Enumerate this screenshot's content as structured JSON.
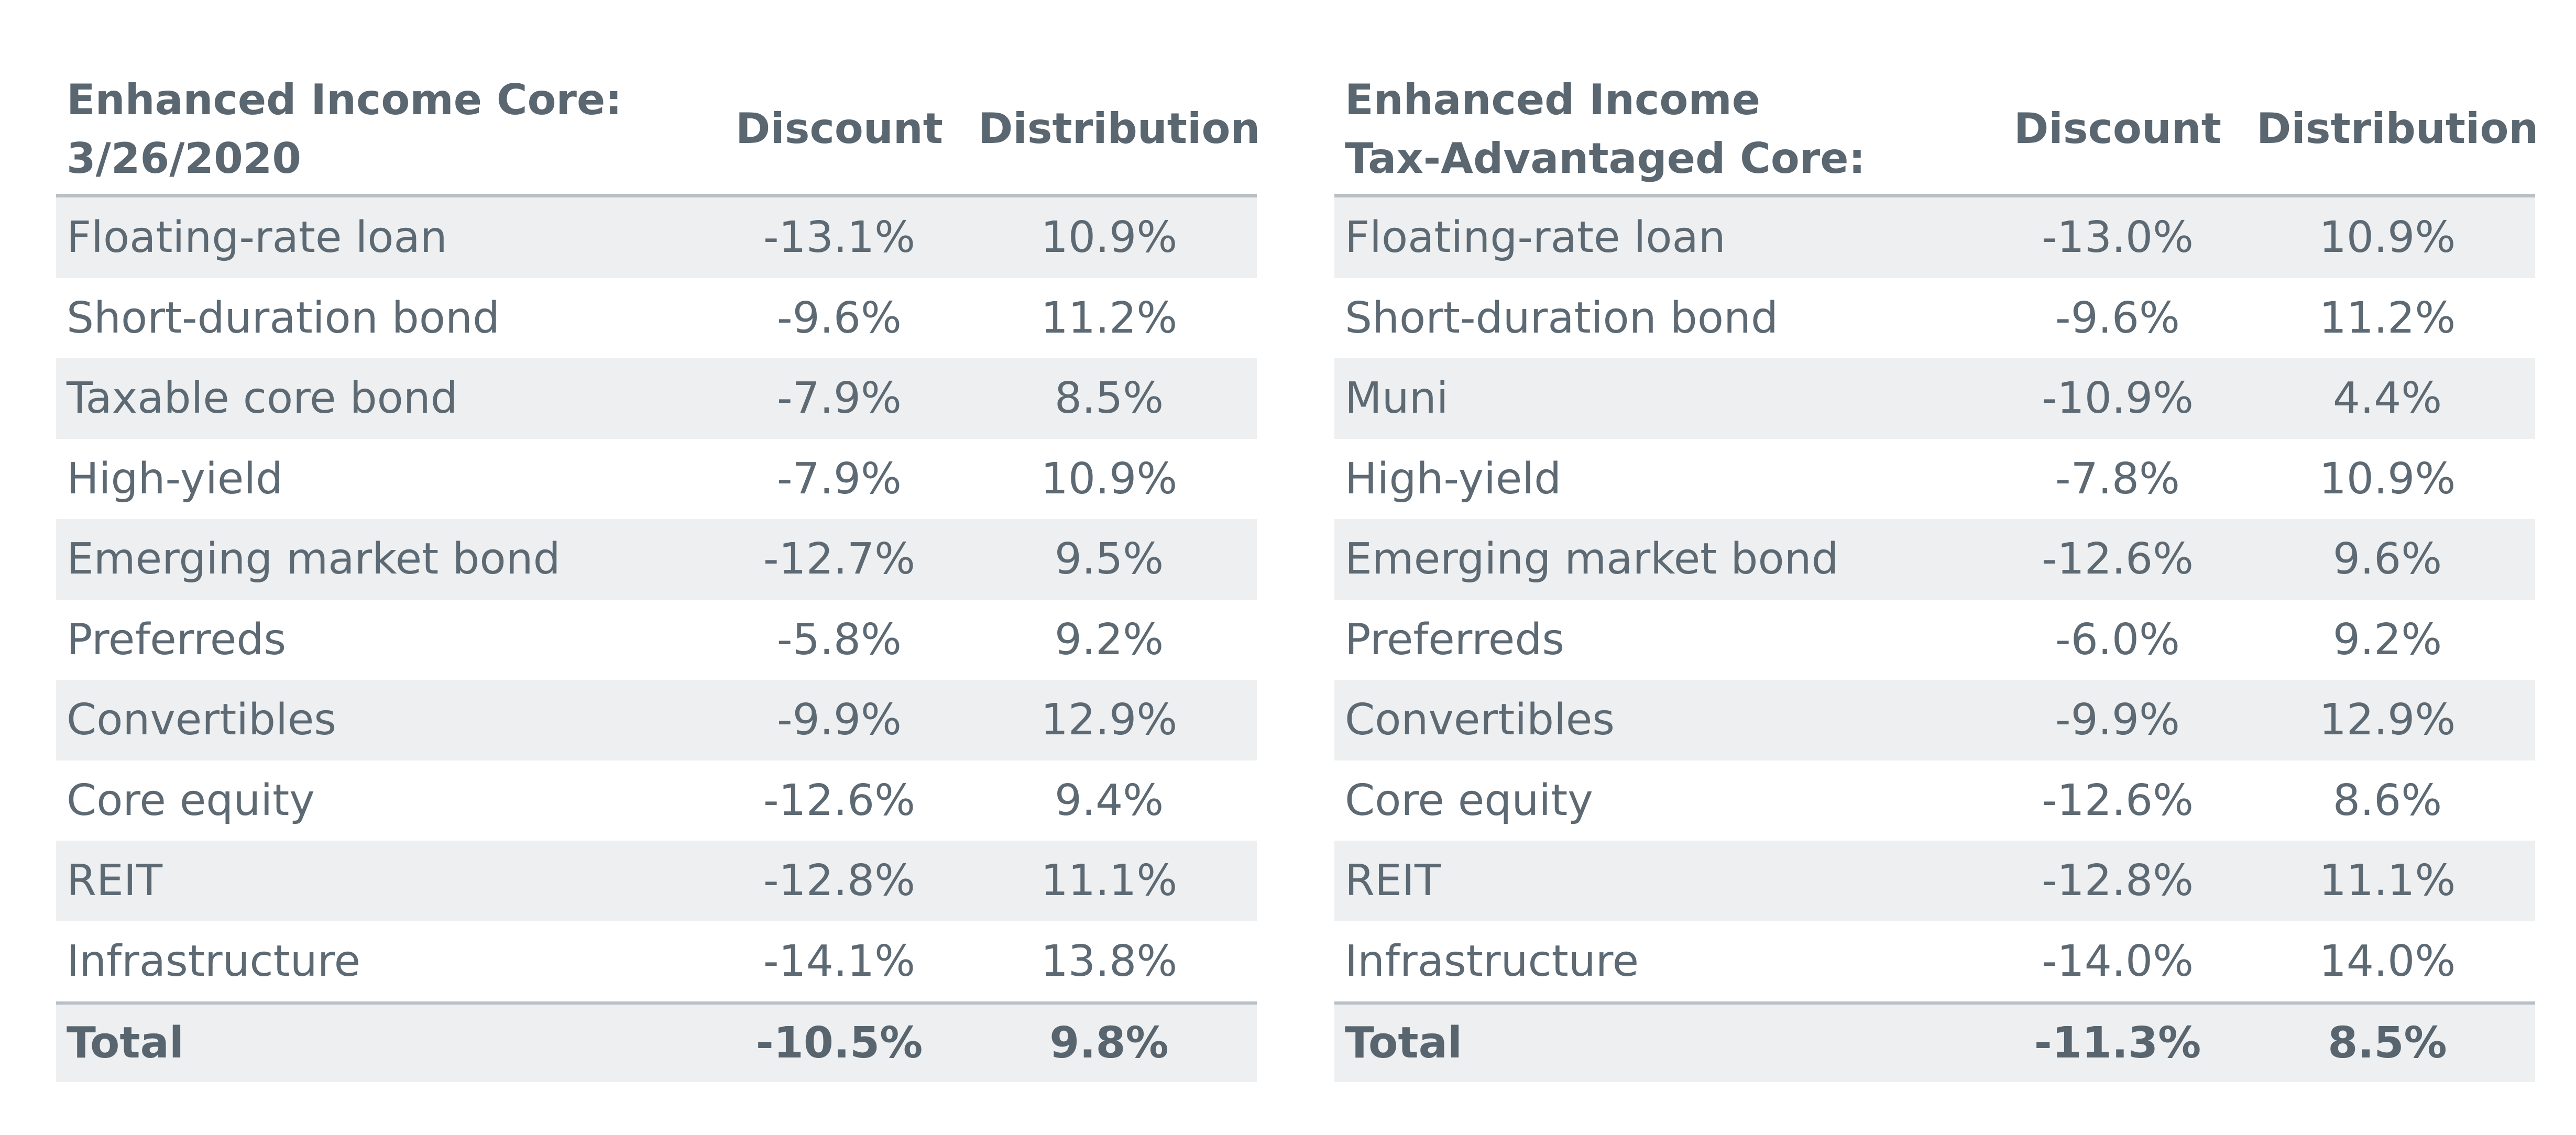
{
  "chart_data": [
    {
      "type": "table",
      "title": "Enhanced Income Core:\n3/26/2020",
      "columns": [
        "Discount",
        "Distribution"
      ],
      "rows": [
        {
          "name": "Floating-rate loan",
          "discount": "-13.1%",
          "distribution": "10.9%"
        },
        {
          "name": "Short-duration bond",
          "discount": "-9.6%",
          "distribution": "11.2%"
        },
        {
          "name": "Taxable core bond",
          "discount": "-7.9%",
          "distribution": "8.5%"
        },
        {
          "name": "High-yield",
          "discount": "-7.9%",
          "distribution": "10.9%"
        },
        {
          "name": "Emerging market bond",
          "discount": "-12.7%",
          "distribution": "9.5%"
        },
        {
          "name": "Preferreds",
          "discount": "-5.8%",
          "distribution": "9.2%"
        },
        {
          "name": "Convertibles",
          "discount": "-9.9%",
          "distribution": "12.9%"
        },
        {
          "name": "Core equity",
          "discount": "-12.6%",
          "distribution": "9.4%"
        },
        {
          "name": "REIT",
          "discount": "-12.8%",
          "distribution": "11.1%"
        },
        {
          "name": "Infrastructure",
          "discount": "-14.1%",
          "distribution": "13.8%"
        }
      ],
      "total": {
        "name": "Total",
        "discount": "-10.5%",
        "distribution": "9.8%"
      }
    },
    {
      "type": "table",
      "title": "Enhanced Income\nTax-Advantaged Core: 3/26/2020",
      "columns": [
        "Discount",
        "Distribution"
      ],
      "rows": [
        {
          "name": "Floating-rate loan",
          "discount": "-13.0%",
          "distribution": "10.9%"
        },
        {
          "name": "Short-duration bond",
          "discount": "-9.6%",
          "distribution": "11.2%"
        },
        {
          "name": "Muni",
          "discount": "-10.9%",
          "distribution": "4.4%"
        },
        {
          "name": "High-yield",
          "discount": "-7.8%",
          "distribution": "10.9%"
        },
        {
          "name": "Emerging market bond",
          "discount": "-12.6%",
          "distribution": "9.6%"
        },
        {
          "name": "Preferreds",
          "discount": "-6.0%",
          "distribution": "9.2%"
        },
        {
          "name": "Convertibles",
          "discount": "-9.9%",
          "distribution": "12.9%"
        },
        {
          "name": "Core equity",
          "discount": "-12.6%",
          "distribution": "8.6%"
        },
        {
          "name": "REIT",
          "discount": "-12.8%",
          "distribution": "11.1%"
        },
        {
          "name": "Infrastructure",
          "discount": "-14.0%",
          "distribution": "14.0%"
        }
      ],
      "total": {
        "name": "Total",
        "discount": "-11.3%",
        "distribution": "8.5%"
      }
    }
  ]
}
